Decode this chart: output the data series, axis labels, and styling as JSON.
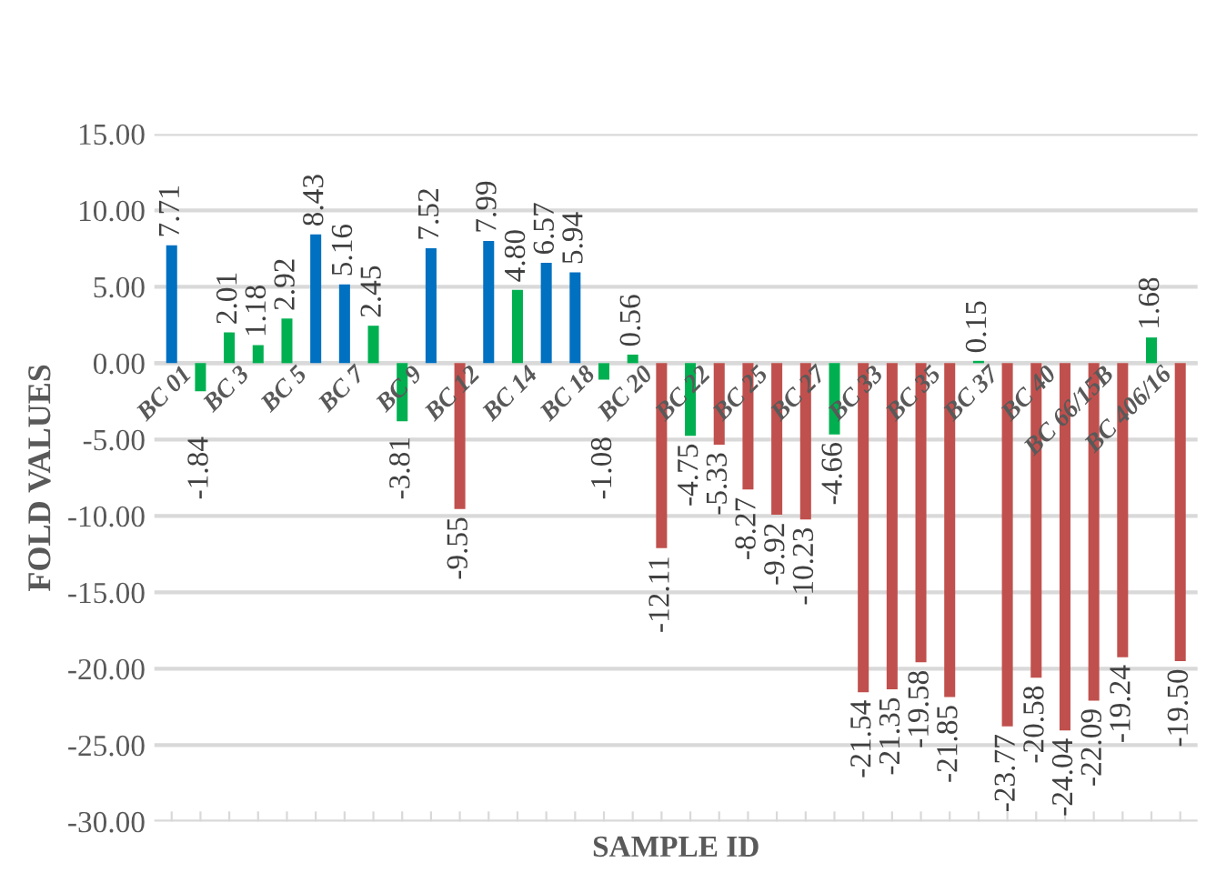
{
  "chart_data": {
    "type": "bar",
    "xlabel": "SAMPLE ID",
    "ylabel": "FOLD VALUES",
    "categories": [
      "BC 01",
      null,
      "BC 3",
      null,
      "BC 5",
      null,
      "BC 7",
      null,
      "BC 9",
      null,
      "BC 12",
      null,
      "BC 14",
      null,
      "BC 18",
      null,
      "BC 20",
      null,
      "BC 22",
      null,
      "BC 25",
      null,
      "BC 27",
      null,
      "BC 33",
      null,
      "BC 35",
      null,
      "BC 37",
      null,
      "BC 40",
      null,
      "BC 66/15B",
      null,
      "BC 406/16",
      null
    ],
    "values": [
      7.71,
      -1.84,
      2.01,
      1.18,
      2.92,
      8.43,
      5.16,
      2.45,
      -3.81,
      7.52,
      -9.55,
      7.99,
      4.8,
      6.57,
      5.94,
      -1.08,
      0.56,
      -12.11,
      -4.75,
      -5.33,
      -8.27,
      -9.92,
      -10.23,
      -4.66,
      -21.54,
      -21.35,
      -19.58,
      -21.85,
      0.15,
      -23.77,
      -20.58,
      -24.04,
      -22.09,
      -19.24,
      1.68,
      -19.5
    ],
    "colors": [
      "#0070c0",
      "#00b050",
      "#00b050",
      "#00b050",
      "#00b050",
      "#0070c0",
      "#0070c0",
      "#00b050",
      "#00b050",
      "#0070c0",
      "#c0504d",
      "#0070c0",
      "#00b050",
      "#0070c0",
      "#0070c0",
      "#00b050",
      "#00b050",
      "#c0504d",
      "#00b050",
      "#c0504d",
      "#c0504d",
      "#c0504d",
      "#c0504d",
      "#00b050",
      "#c0504d",
      "#c0504d",
      "#c0504d",
      "#c0504d",
      "#00b050",
      "#c0504d",
      "#c0504d",
      "#c0504d",
      "#c0504d",
      "#c0504d",
      "#00b050",
      "#c0504d"
    ],
    "value_labels": [
      "7.71",
      "-1.84",
      "2.01",
      "1.18",
      "2.92",
      "8.43",
      "5.16",
      "2.45",
      "-3.81",
      "7.52",
      "-9.55",
      "7.99",
      "4.80",
      "6.57",
      "5.94",
      "-1.08",
      "0.56",
      "-12.11",
      "-4.75",
      "-5.33",
      "-8.27",
      "-9.92",
      "-10.23",
      "-4.66",
      "-21.54",
      "-21.35",
      "-19.58",
      "-21.85",
      "0.15",
      "-23.77",
      "-20.58",
      "-24.04",
      "-22.09",
      "-19.24",
      "1.68",
      "-19.50"
    ],
    "ylim": [
      -30,
      15
    ],
    "yticks": [
      {
        "value": -30,
        "label": "-30.00"
      },
      {
        "value": -25,
        "label": "-25.00"
      },
      {
        "value": -20,
        "label": "-20.00"
      },
      {
        "value": -15,
        "label": "-15.00"
      },
      {
        "value": -10,
        "label": "-10.00"
      },
      {
        "value": -5,
        "label": "-5.00"
      },
      {
        "value": 0,
        "label": "0.00"
      },
      {
        "value": 5,
        "label": "5.00"
      },
      {
        "value": 10,
        "label": "10.00"
      },
      {
        "value": 15,
        "label": "15.00"
      }
    ],
    "grid": "y",
    "legend": false
  }
}
